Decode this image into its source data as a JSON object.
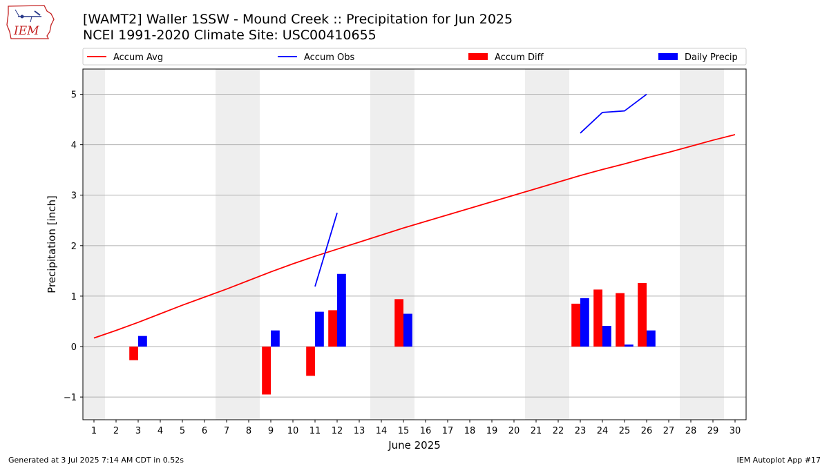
{
  "header": {
    "title_line1": "[WAMT2] Waller 1SSW - Mound Creek :: Precipitation for Jun 2025",
    "title_line2": "NCEI 1991-2020 Climate Site: USC00410655",
    "logo_text": "IEM"
  },
  "footer": {
    "left": "Generated at 3 Jul 2025 7:14 AM CDT in 0.52s",
    "right": "IEM Autoplot App #17"
  },
  "colors": {
    "accum_avg": "#ff0000",
    "accum_obs": "#0000ff",
    "accum_diff": "#ff0000",
    "daily_precip": "#0000ff",
    "weekend_shade": "#eeeeee",
    "grid": "#b0b0b0"
  },
  "chart_data": {
    "type": "bar",
    "xlabel": "June 2025",
    "ylabel": "Precipitation [inch]",
    "xlim": [
      0.5,
      30.5
    ],
    "ylim": [
      -1.45,
      5.5
    ],
    "yticks": [
      -1,
      0,
      1,
      2,
      3,
      4,
      5
    ],
    "ytick_labels": [
      "−1",
      "0",
      "1",
      "2",
      "3",
      "4",
      "5"
    ],
    "xticks": [
      1,
      2,
      3,
      4,
      5,
      6,
      7,
      8,
      9,
      10,
      11,
      12,
      13,
      14,
      15,
      16,
      17,
      18,
      19,
      20,
      21,
      22,
      23,
      24,
      25,
      26,
      27,
      28,
      29,
      30
    ],
    "grid": "horizontal",
    "legend_position": "top",
    "weekend_days": [
      1,
      7,
      8,
      14,
      15,
      21,
      22,
      28,
      29
    ],
    "legend": [
      {
        "label": "Accum Avg",
        "kind": "line",
        "color": "#ff0000"
      },
      {
        "label": "Accum Obs",
        "kind": "line",
        "color": "#0000ff"
      },
      {
        "label": "Accum Diff",
        "kind": "bar",
        "color": "#ff0000"
      },
      {
        "label": "Daily Precip",
        "kind": "bar",
        "color": "#0000ff"
      }
    ],
    "series": [
      {
        "name": "Accum Avg",
        "kind": "line",
        "x": [
          1,
          2,
          3,
          4,
          5,
          6,
          7,
          8,
          9,
          10,
          11,
          12,
          13,
          14,
          15,
          16,
          17,
          18,
          19,
          20,
          21,
          22,
          23,
          24,
          25,
          26,
          27,
          28,
          29,
          30
        ],
        "values": [
          0.17,
          0.32,
          0.48,
          0.65,
          0.82,
          0.98,
          1.14,
          1.31,
          1.48,
          1.64,
          1.79,
          1.93,
          2.07,
          2.21,
          2.35,
          2.48,
          2.61,
          2.74,
          2.87,
          3.0,
          3.13,
          3.26,
          3.39,
          3.51,
          3.62,
          3.74,
          3.85,
          3.97,
          4.09,
          4.2
        ]
      },
      {
        "name": "Accum Obs",
        "kind": "line",
        "segments": [
          {
            "x": [
              11,
              12
            ],
            "values": [
              1.19,
              2.65
            ]
          },
          {
            "x": [
              23,
              24,
              25,
              26
            ],
            "values": [
              4.23,
              4.64,
              4.67,
              5.0
            ]
          }
        ]
      },
      {
        "name": "Accum Diff",
        "kind": "bar",
        "x": [
          3,
          9,
          11,
          12,
          15,
          23,
          24,
          25,
          26
        ],
        "values": [
          -0.27,
          -0.95,
          -0.58,
          0.72,
          0.94,
          0.85,
          1.13,
          1.06,
          1.26
        ]
      },
      {
        "name": "Daily Precip",
        "kind": "bar",
        "x": [
          3,
          9,
          11,
          12,
          15,
          23,
          24,
          25,
          26
        ],
        "values": [
          0.21,
          0.32,
          0.69,
          1.44,
          0.65,
          0.96,
          0.41,
          0.04,
          0.32
        ]
      }
    ]
  }
}
